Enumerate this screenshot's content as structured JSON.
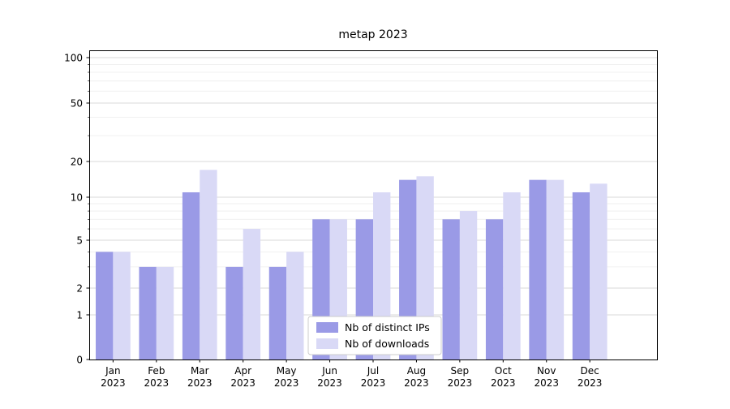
{
  "chart_data": {
    "type": "bar",
    "title": "metap 2023",
    "yscale": "symlog",
    "ylim": [
      0,
      110
    ],
    "grid": "horizontal major + log-minor, light gray",
    "legend_position": "lower center (inside plot)",
    "months": [
      "Jan",
      "Feb",
      "Mar",
      "Apr",
      "May",
      "Jun",
      "Jul",
      "Aug",
      "Sep",
      "Oct",
      "Nov",
      "Dec"
    ],
    "year": "2023",
    "axes": {
      "y_tick_values": [
        100,
        50,
        20,
        10,
        5,
        2,
        1,
        0
      ],
      "y_tick_labels": [
        "100",
        "50",
        "20",
        "10",
        "5",
        "2",
        "1",
        "0"
      ],
      "y_minor_grid_values": [
        3,
        4,
        6,
        7,
        8,
        9,
        30,
        40,
        60,
        70,
        80,
        90
      ]
    },
    "series": [
      {
        "name": "Nb of distinct IPs",
        "color": "#9a9ae6",
        "values": [
          4,
          3,
          11,
          3,
          3,
          7,
          7,
          14,
          7,
          7,
          14,
          11
        ]
      },
      {
        "name": "Nb of downloads",
        "color": "#d9d9f6",
        "values": [
          4,
          3,
          17,
          6,
          4,
          7,
          11,
          15,
          8,
          11,
          14,
          13
        ]
      }
    ]
  },
  "colors": {
    "major_grid": "#d9d9d9",
    "minor_grid": "#ececec",
    "axis": "#000000",
    "legend_border": "#cccccc",
    "legend_background": "#ffffff"
  }
}
